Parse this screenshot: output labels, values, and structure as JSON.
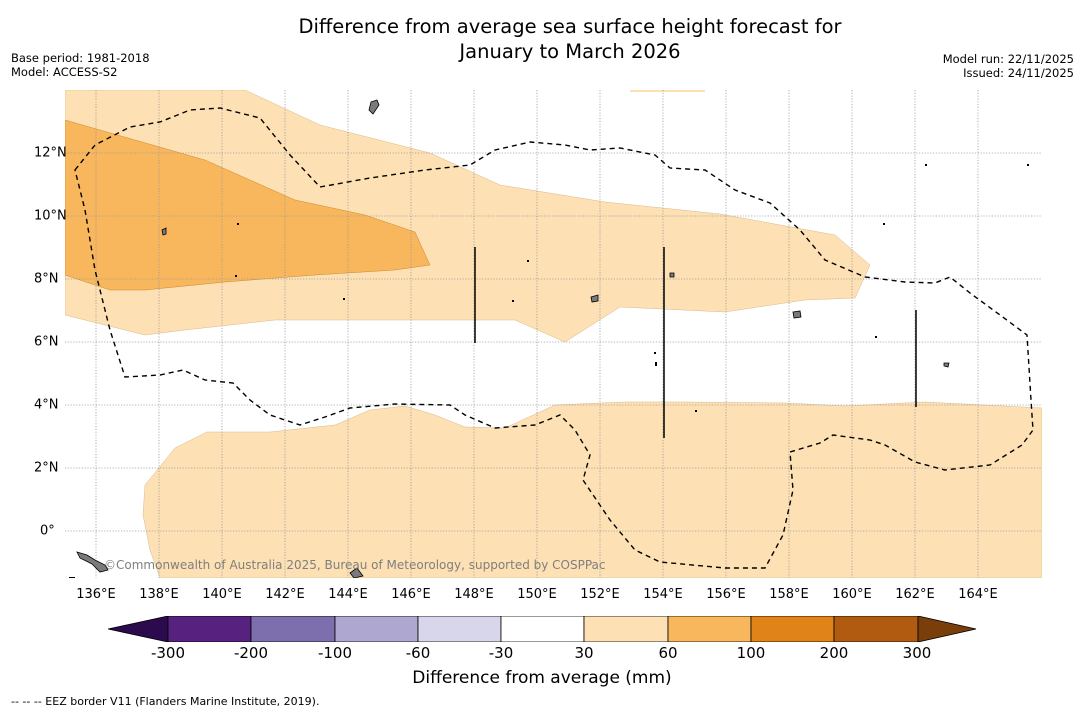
{
  "title": {
    "line1": "Difference from average sea surface height forecast for",
    "line2": "January to March 2026"
  },
  "meta": {
    "base_period": "Base period: 1981-2018",
    "model": "Model: ACCESS-S2",
    "model_run": "Model run: 22/11/2025",
    "issued": "Issued: 24/11/2025"
  },
  "copyright": "©Commonwealth of Australia 2025, Bureau of Meteorology, supported by COSPPac",
  "axes": {
    "x_ticks": [
      "136°E",
      "138°E",
      "140°E",
      "142°E",
      "144°E",
      "146°E",
      "148°E",
      "150°E",
      "152°E",
      "154°E",
      "156°E",
      "158°E",
      "160°E",
      "162°E",
      "164°E"
    ],
    "y_ticks": [
      "12°N",
      "10°N",
      "8°N",
      "6°N",
      "4°N",
      "2°N",
      "0°"
    ],
    "lon_range": [
      135,
      166
    ],
    "lat_range": [
      -1.5,
      14
    ]
  },
  "colorbar": {
    "title": "Difference from average (mm)",
    "labels": [
      "-300",
      "-200",
      "-100",
      "-60",
      "-30",
      "30",
      "60",
      "100",
      "200",
      "300"
    ],
    "colors": [
      "#56217f",
      "#7d6fad",
      "#aea7d0",
      "#d7d6ea",
      "#ffffff",
      "#fde0b3",
      "#f8b65d",
      "#e08419",
      "#b05b10"
    ],
    "under_color": "#2c0a4e",
    "over_color": "#7a3e0b"
  },
  "fill_colors": {
    "light": "#fde0b3",
    "medium": "#f8b65d"
  },
  "legend_note": "--  --  -- EEZ border V11 (Flanders Marine Institute, 2019)."
}
